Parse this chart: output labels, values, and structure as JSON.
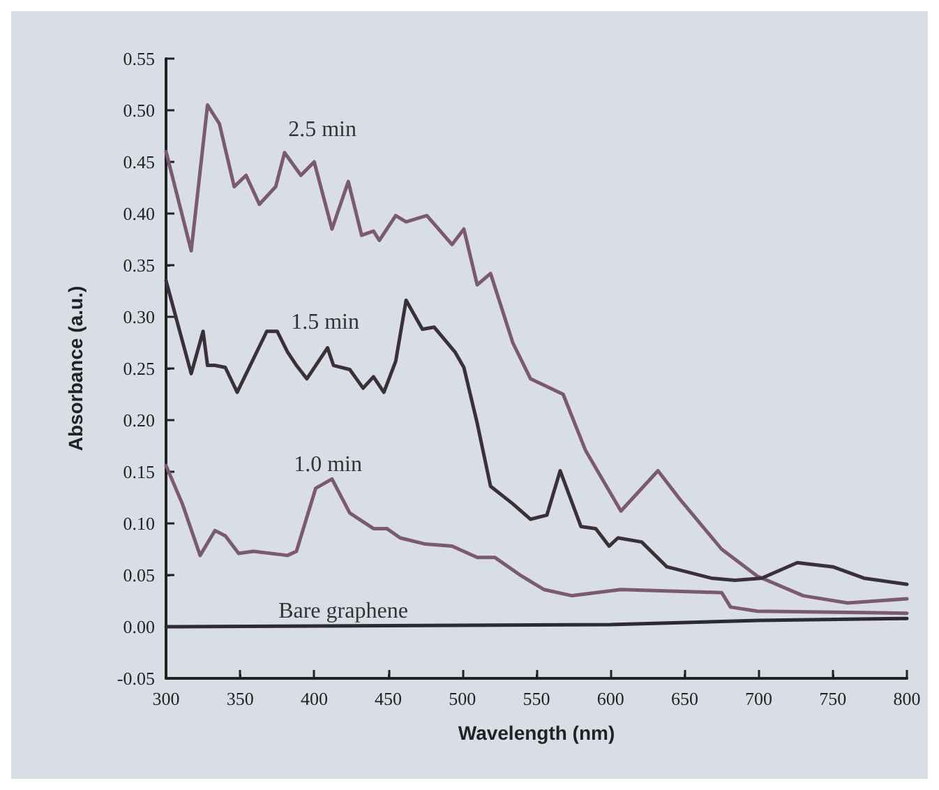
{
  "chart_data": {
    "type": "line",
    "xlabel": "Wavelength (nm)",
    "ylabel": "Absorbance (a.u.)",
    "xlim": [
      300,
      800
    ],
    "xticks": [
      300,
      350,
      400,
      450,
      500,
      550,
      600,
      650,
      700,
      750,
      800
    ],
    "ylim": [
      -0.05,
      0.55
    ],
    "yticks": [
      {
        "value": -0.05,
        "label": "-0.05"
      },
      {
        "value": 0,
        "label": "0.00"
      },
      0.05,
      {
        "value": 0.1,
        "label": "0.10"
      },
      0.15,
      {
        "value": 0.2,
        "label": "0.20"
      },
      0.25,
      {
        "value": 0.3,
        "label": "0.30"
      },
      0.35,
      {
        "value": 0.4,
        "label": "0.40"
      },
      0.45,
      {
        "value": 0.5,
        "label": "0.50"
      },
      0.55
    ],
    "marker": "none",
    "line_style": "solid",
    "series": [
      {
        "color": "#7a5a6e",
        "x": [
          300,
          317,
          328,
          336,
          346,
          354,
          363,
          374,
          380,
          391,
          400,
          412,
          423,
          432,
          440,
          444,
          455,
          462,
          476,
          493,
          501,
          510,
          519,
          534,
          546,
          568,
          583,
          607,
          632,
          647,
          675,
          699,
          730,
          760,
          800
        ],
        "values": [
          0.46,
          0.364,
          0.505,
          0.487,
          0.426,
          0.437,
          0.409,
          0.426,
          0.459,
          0.437,
          0.45,
          0.385,
          0.431,
          0.379,
          0.383,
          0.374,
          0.398,
          0.392,
          0.398,
          0.37,
          0.385,
          0.331,
          0.342,
          0.275,
          0.24,
          0.225,
          0.171,
          0.112,
          0.151,
          0.123,
          0.075,
          0.049,
          0.03,
          0.023,
          0.027
        ]
      },
      {
        "color": "#3a3038",
        "x": [
          300,
          317,
          325,
          328,
          333,
          340,
          348,
          368,
          375,
          382,
          388,
          395,
          409,
          413,
          424,
          433,
          440,
          447,
          455,
          462,
          473,
          481,
          495,
          501,
          510,
          519,
          534,
          546,
          557,
          566,
          580,
          590,
          599,
          605,
          621,
          638,
          668,
          684,
          702,
          726,
          750,
          771,
          800
        ],
        "values": [
          0.335,
          0.245,
          0.286,
          0.253,
          0.253,
          0.251,
          0.227,
          0.286,
          0.286,
          0.266,
          0.253,
          0.24,
          0.27,
          0.253,
          0.249,
          0.231,
          0.242,
          0.227,
          0.257,
          0.316,
          0.288,
          0.29,
          0.266,
          0.251,
          0.197,
          0.136,
          0.119,
          0.104,
          0.108,
          0.151,
          0.097,
          0.095,
          0.078,
          0.086,
          0.082,
          0.058,
          0.047,
          0.045,
          0.047,
          0.062,
          0.058,
          0.047,
          0.041
        ]
      },
      {
        "color": "#7a5a6e",
        "x": [
          300,
          311,
          323,
          333,
          340,
          349,
          359,
          382,
          388,
          401,
          412,
          424,
          440,
          449,
          458,
          475,
          493,
          510,
          522,
          540,
          555,
          574,
          607,
          675,
          681,
          699,
          800
        ],
        "values": [
          0.156,
          0.119,
          0.069,
          0.093,
          0.088,
          0.071,
          0.073,
          0.069,
          0.073,
          0.134,
          0.143,
          0.11,
          0.095,
          0.095,
          0.086,
          0.08,
          0.078,
          0.067,
          0.067,
          0.049,
          0.036,
          0.03,
          0.036,
          0.033,
          0.019,
          0.015,
          0.013
        ]
      },
      {
        "color": "#2e2a30",
        "x": [
          300,
          600,
          700,
          800
        ],
        "values": [
          0,
          0.002,
          0.006,
          0.008
        ]
      }
    ],
    "annotations": [
      "2.5 min",
      "1.5 min",
      "1.0 min",
      "Bare graphene"
    ]
  }
}
